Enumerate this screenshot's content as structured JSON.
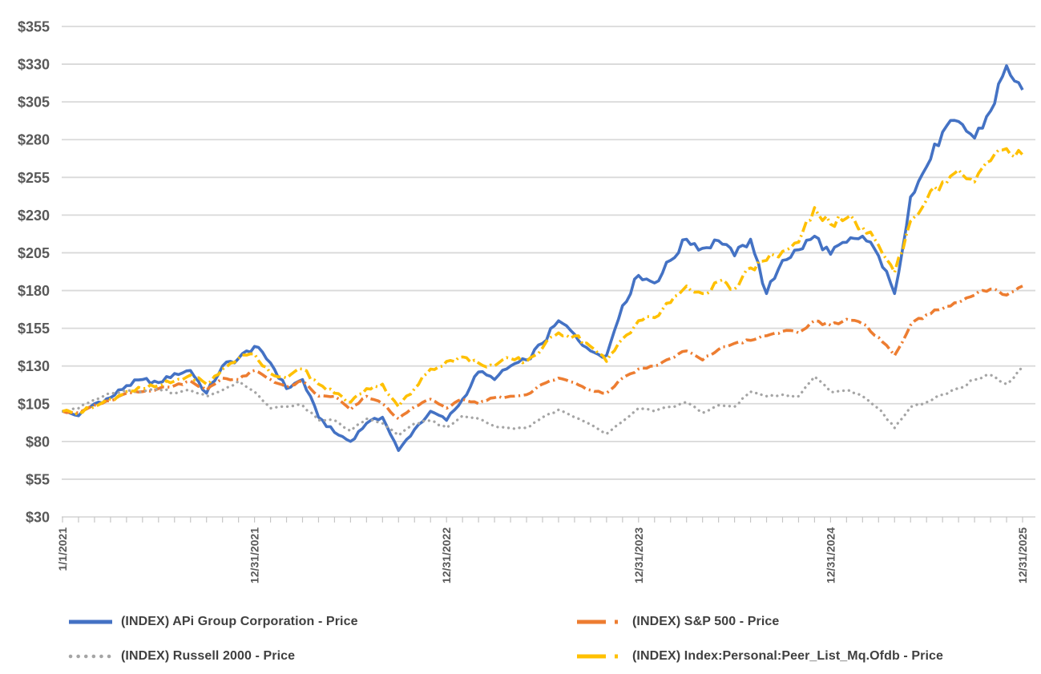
{
  "chart_data": {
    "type": "line",
    "title": "",
    "subtitle": "",
    "x_axis": {
      "start_date": "1/1/2021",
      "end_date": "12/31/2025",
      "tick_labels": [
        "1/1/2021",
        "12/31/2021",
        "12/31/2022",
        "12/31/2023",
        "12/31/2024",
        "12/31/2025"
      ],
      "tick_positions_years": [
        0,
        1,
        2,
        3,
        4,
        5
      ],
      "minor_tick_interval": "monthly",
      "label_rotation_deg": -90
    },
    "y_axis": {
      "prefix": "$",
      "tick_labels": [
        "$30",
        "$55",
        "$80",
        "$105",
        "$130",
        "$155",
        "$180",
        "$205",
        "$230",
        "$255",
        "$280",
        "$305",
        "$330",
        "$355"
      ],
      "tick_values": [
        30,
        55,
        80,
        105,
        130,
        155,
        180,
        205,
        230,
        255,
        280,
        305,
        330,
        355
      ],
      "range": [
        30,
        355
      ],
      "grid": true
    },
    "sampling": "monthly values, index 0 = 1/1/2021 then each month-end through 12/31/2025",
    "legend": {
      "position": "bottom",
      "columns": 2
    },
    "colors": {
      "grid": "#d9d9d9",
      "tick": "#c6c6c6",
      "axis_text": "#595959",
      "legend_text": "#404040",
      "background": "#ffffff"
    },
    "series": [
      {
        "name": "(INDEX) APi Group Corporation - Price",
        "color": "#4472C4",
        "style": "solid",
        "values": [
          100,
          97,
          105,
          109,
          117,
          121,
          119,
          125,
          127,
          112,
          130,
          135,
          143,
          132,
          115,
          121,
          96,
          86,
          80,
          92,
          96,
          74,
          88,
          100,
          94,
          108,
          126,
          121,
          130,
          134,
          145,
          160,
          151,
          140,
          137,
          170,
          190,
          185,
          200,
          214,
          208,
          213,
          203,
          214,
          178,
          200,
          207,
          216,
          204,
          212,
          216,
          203,
          178,
          242,
          262,
          285,
          292,
          281,
          299,
          329,
          313
        ]
      },
      {
        "name": "(INDEX) S&P 500 - Price",
        "color": "#ED7D31",
        "style": "dash-dot",
        "values": [
          100,
          99,
          104,
          107,
          112,
          113,
          115,
          117,
          120,
          114,
          122,
          121,
          127,
          121,
          116,
          120,
          110,
          110,
          101,
          110,
          105,
          95,
          103,
          108,
          102,
          108,
          105,
          109,
          110,
          111,
          118,
          122,
          119,
          114,
          112,
          122,
          128,
          130,
          135,
          140,
          134,
          141,
          145,
          147,
          150,
          153,
          152,
          160,
          157,
          161,
          158,
          149,
          137,
          157,
          164,
          168,
          172,
          177,
          181,
          177,
          183
        ]
      },
      {
        "name": "(INDEX) Russell 2000 - Price",
        "color": "#A5A5A5",
        "style": "dotted",
        "values": [
          100,
          102,
          108,
          112,
          114,
          113,
          115,
          112,
          114,
          110,
          114,
          120,
          113,
          102,
          103,
          104,
          94,
          94,
          87,
          95,
          92,
          84,
          92,
          94,
          89,
          97,
          95,
          90,
          89,
          89,
          96,
          101,
          96,
          91,
          85,
          93,
          102,
          100,
          103,
          106,
          99,
          104,
          103,
          113,
          110,
          111,
          110,
          123,
          113,
          114,
          110,
          102,
          89,
          103,
          106,
          111,
          115,
          121,
          124,
          118,
          129
        ]
      },
      {
        "name": "(INDEX) Index:Personal:Peer_List_Mq.Ofdb - Price",
        "color": "#FFC000",
        "style": "dash-dot",
        "values": [
          100,
          99,
          103,
          108,
          113,
          115,
          117,
          120,
          124,
          118,
          128,
          135,
          138,
          125,
          122,
          128,
          118,
          112,
          106,
          115,
          118,
          103,
          115,
          128,
          133,
          136,
          132,
          130,
          135,
          133,
          142,
          152,
          150,
          143,
          133,
          148,
          160,
          162,
          172,
          183,
          178,
          186,
          181,
          195,
          200,
          206,
          212,
          235,
          224,
          228,
          222,
          210,
          192,
          226,
          240,
          252,
          260,
          252,
          266,
          274,
          270
        ]
      }
    ]
  }
}
